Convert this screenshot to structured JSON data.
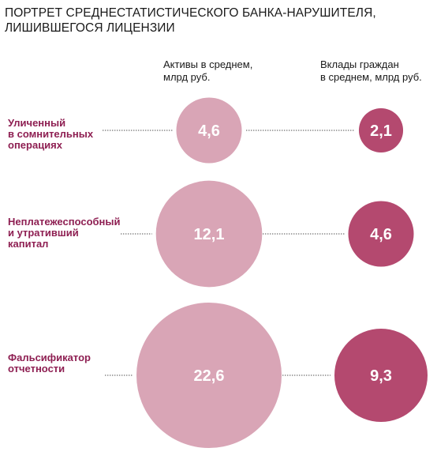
{
  "header": {
    "title_lines": [
      "ПОРТРЕТ СРЕДНЕСТАТИСТИЧЕСКОГО БАНКА-НАРУШИТЕЛЯ,",
      "ЛИШИВШЕГОСЯ ЛИЦЕНЗИИ"
    ]
  },
  "columns": [
    {
      "label_lines": [
        "Активы в среднем,",
        "млрд руб."
      ]
    },
    {
      "label_lines": [
        "Вклады граждан",
        "в среднем, млрд руб."
      ]
    }
  ],
  "rows": [
    {
      "label_lines": [
        "Уличенный",
        "в сомнительных",
        "операциях"
      ]
    },
    {
      "label_lines": [
        "Неплатежеспособный",
        "и утративший",
        "капитал"
      ]
    },
    {
      "label_lines": [
        "Фальсификатор",
        "отчетности"
      ]
    }
  ],
  "chart_data": {
    "type": "bubble",
    "title": "ПОРТРЕТ СРЕДНЕСТАТИСТИЧЕСКОГО БАНКА-НАРУШИТЕЛЯ, ЛИШИВШЕГОСЯ ЛИЦЕНЗИИ",
    "categories": [
      "Уличенный в сомнительных операциях",
      "Неплатежеспособный и утративший капитал",
      "Фальсификатор отчетности"
    ],
    "series": [
      {
        "name": "Активы в среднем, млрд руб.",
        "values": [
          4.6,
          12.1,
          22.6
        ],
        "labels": [
          "4,6",
          "12,1",
          "22,6"
        ],
        "color": "#d9a5b6"
      },
      {
        "name": "Вклады граждан в среднем, млрд руб.",
        "values": [
          2.1,
          4.6,
          9.3
        ],
        "labels": [
          "2,1",
          "4,6",
          "9,3"
        ],
        "color": "#b4496f"
      }
    ],
    "value_label_color": "#ffffff",
    "connector_color": "#888888"
  }
}
